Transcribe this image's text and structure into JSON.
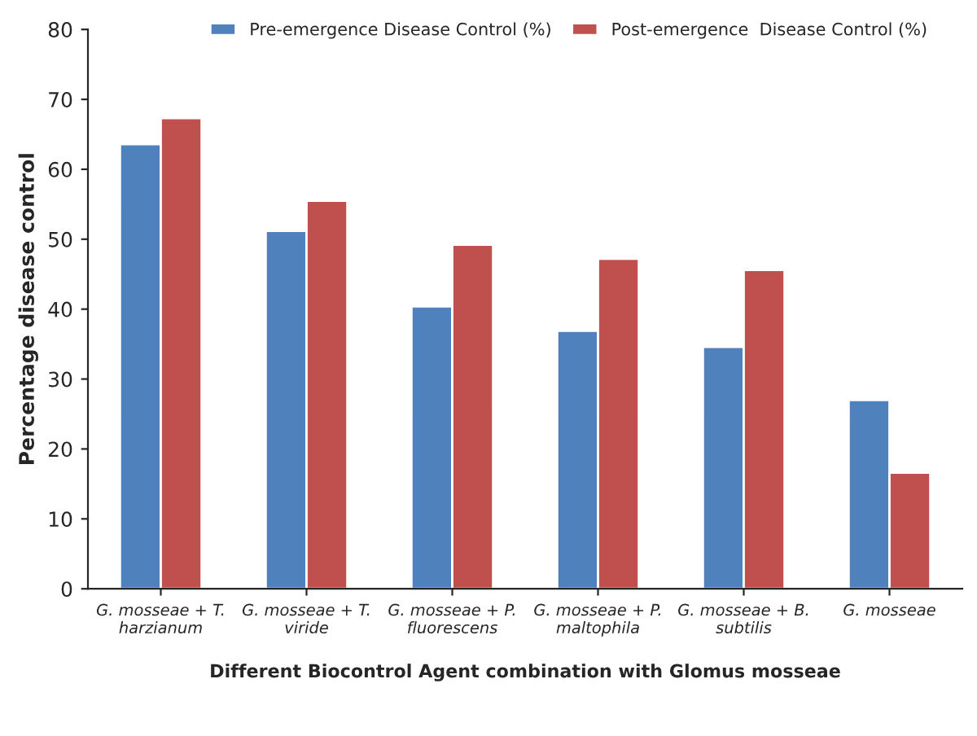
{
  "chart_data": {
    "type": "bar",
    "xlabel": "Different Biocontrol Agent combination with Glomus mosseae",
    "ylabel": "Percentage disease control",
    "categories": [
      "G. mosseae + T.\nharzianum",
      "G. mosseae + T.\nviride",
      "G. mosseae + P.\nfluorescens",
      "G. mosseae + P.\nmaltophila",
      "G. mosseae + B.\nsubtilis",
      "G. mosseae"
    ],
    "series": [
      {
        "name": "Pre-emergence Disease Control (%)",
        "color": "#4f81bd",
        "values": [
          63.6,
          51.2,
          40.4,
          36.9,
          34.6,
          27
        ]
      },
      {
        "name": "Post-emergence  Disease Control (%)",
        "color": "#c0504d",
        "values": [
          67.3,
          55.5,
          49.2,
          47.2,
          45.6,
          16.6
        ]
      }
    ],
    "ylim": [
      0,
      80
    ],
    "yticks": [
      0,
      10,
      20,
      30,
      40,
      50,
      60,
      70,
      80
    ],
    "grid": false,
    "legend": "top"
  }
}
